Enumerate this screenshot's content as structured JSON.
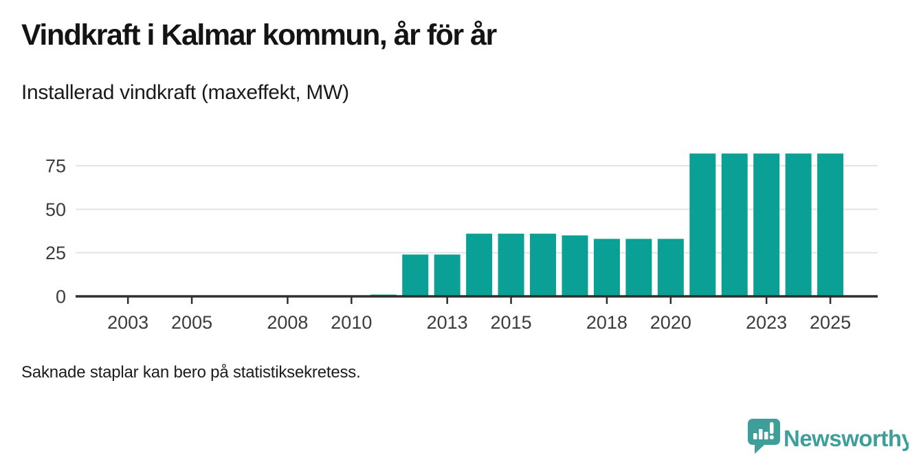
{
  "header": {
    "title": "Vindkraft i Kalmar kommun, år för år",
    "subtitle": "Installerad vindkraft (maxeffekt, MW)"
  },
  "footer": {
    "note": "Saknade staplar kan bero på statistiksekretess."
  },
  "branding": {
    "name": "Newsworthy",
    "color": "#3d9e9a"
  },
  "chart_data": {
    "type": "bar",
    "title": "Vindkraft i Kalmar kommun, år för år",
    "subtitle": "Installerad vindkraft (maxeffekt, MW)",
    "ylabel": "Installerad vindkraft (maxeffekt, MW)",
    "xlabel": "",
    "unit": "MW",
    "categories": [
      "2002",
      "2003",
      "2004",
      "2005",
      "2006",
      "2007",
      "2008",
      "2009",
      "2010",
      "2011",
      "2012",
      "2013",
      "2014",
      "2015",
      "2016",
      "2017",
      "2018",
      "2019",
      "2020",
      "2021",
      "2022",
      "2023",
      "2024",
      "2025"
    ],
    "values": [
      null,
      null,
      null,
      null,
      null,
      null,
      null,
      null,
      null,
      1,
      24,
      24,
      36,
      36,
      36,
      35,
      33,
      33,
      33,
      82,
      82,
      82,
      82,
      82
    ],
    "missing_years": [
      "2002",
      "2003",
      "2004",
      "2005",
      "2006",
      "2007",
      "2008",
      "2009",
      "2010"
    ],
    "x_tick_labels": [
      "2003",
      "2005",
      "2008",
      "2010",
      "2013",
      "2015",
      "2018",
      "2020",
      "2023",
      "2025"
    ],
    "y_ticks": [
      0,
      25,
      50,
      75
    ],
    "ylim": [
      0,
      95
    ],
    "grid": "horizontal",
    "legend": "none",
    "bar_color": "#0aa096",
    "axis_color": "#2e2e2e",
    "gridline_color": "#e3e3e3",
    "tick_label_color": "#3c3c3c",
    "note": "Saknade staplar kan bero på statistiksekretess."
  }
}
